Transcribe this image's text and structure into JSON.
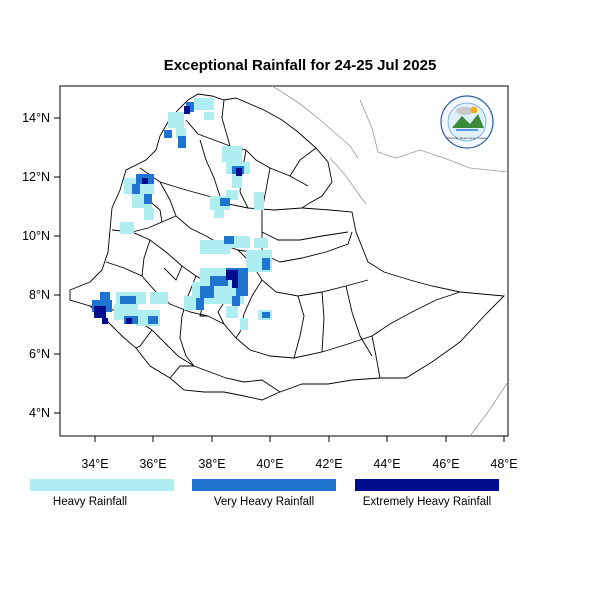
{
  "title": "Exceptional Rainfall for 24-25 Jul 2025",
  "lon_ticks": [
    "34°E",
    "36°E",
    "38°E",
    "40°E",
    "42°E",
    "44°E",
    "46°E",
    "48°E"
  ],
  "lat_ticks": [
    "14°N",
    "12°N",
    "10°N",
    "8°N",
    "6°N",
    "4°N"
  ],
  "logo": {
    "text": "Ethiopian Meteorology Institute"
  },
  "legend": [
    {
      "label": "Heavy Rainfall",
      "color": "#aeeef0"
    },
    {
      "label": "Very Heavy Rainfall",
      "color": "#1e74cf"
    },
    {
      "label": "Extremely Heavy Rainfall",
      "color": "#000d8c"
    }
  ],
  "colors": {
    "heavy": "#aeeef0",
    "very_heavy": "#1e74cf",
    "extreme": "#000d8c",
    "border": "#000000",
    "neighbor": "#9a9a9a"
  }
}
